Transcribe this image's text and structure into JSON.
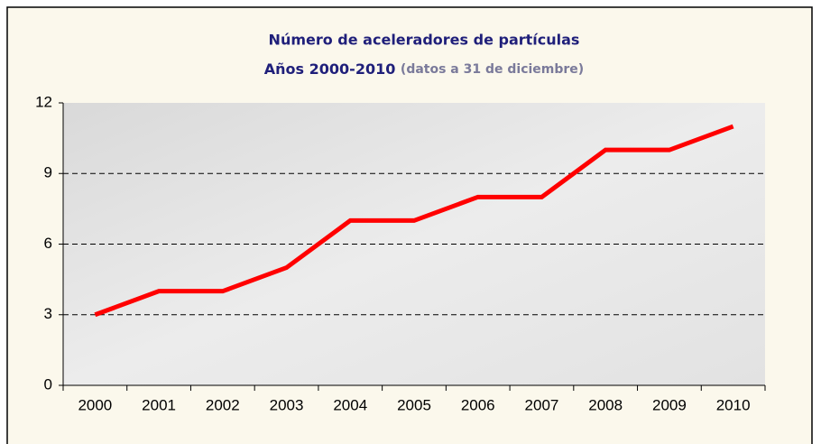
{
  "chart_data": {
    "type": "line",
    "title": [
      "Número de aceleradores de partículas",
      "Años 2000-2010"
    ],
    "subtitle": "(datos a 31 de diciembre)",
    "categories": [
      "2000",
      "2001",
      "2002",
      "2003",
      "2004",
      "2005",
      "2006",
      "2007",
      "2008",
      "2009",
      "2010"
    ],
    "values": [
      3,
      4,
      4,
      5,
      7,
      7,
      8,
      8,
      10,
      10,
      11
    ],
    "color": "#ff0000",
    "ylim": [
      0,
      12
    ],
    "yticks": [
      0,
      3,
      6,
      9,
      12
    ],
    "grid": true
  }
}
